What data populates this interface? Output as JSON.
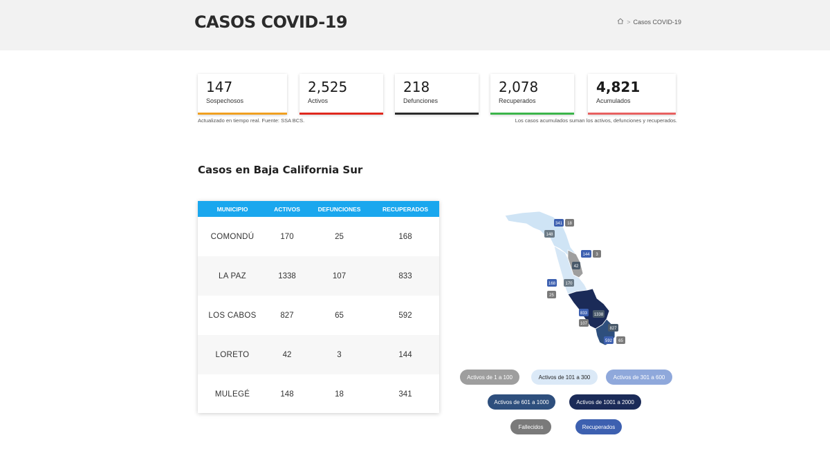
{
  "header": {
    "title": "CASOS COVID-19",
    "breadcrumb": {
      "home_icon": "home-icon",
      "separator": ">",
      "current": "Casos COVID-19"
    }
  },
  "stats": [
    {
      "value": "147",
      "label": "Sospechosos",
      "color": "#f0a020"
    },
    {
      "value": "2,525",
      "label": "Activos",
      "color": "#e0281e"
    },
    {
      "value": "218",
      "label": "Defunciones",
      "color": "#2b2b2b"
    },
    {
      "value": "2,078",
      "label": "Recuperados",
      "color": "#3bb54a"
    },
    {
      "value": "4,821",
      "label": "Acumulados",
      "color": "#e86060"
    }
  ],
  "notes": {
    "left": "Actualizado en tiempo real. Fuente: SSA BCS.",
    "right": "Los casos acumulados suman los activos, defunciones y recuperados."
  },
  "section": {
    "title": "Casos en Baja California Sur"
  },
  "table": {
    "headers": [
      "MUNICIPIO",
      "ACTIVOS",
      "DEFUNCIONES",
      "RECUPERADOS"
    ],
    "rows": [
      [
        "COMONDÚ",
        "170",
        "25",
        "168"
      ],
      [
        "LA PAZ",
        "1338",
        "107",
        "833"
      ],
      [
        "LOS CABOS",
        "827",
        "65",
        "592"
      ],
      [
        "LORETO",
        "42",
        "3",
        "144"
      ],
      [
        "MULEGÉ",
        "148",
        "18",
        "341"
      ]
    ],
    "header_color": "#1aa7ee"
  },
  "map": {
    "labels": {
      "mulege_recovered": "341",
      "mulege_deaths": "18",
      "mulege_active": "148",
      "loreto_recovered": "144",
      "loreto_deaths": "3",
      "loreto_active": "42",
      "comondu_recovered": "168",
      "comondu_active": "170",
      "comondu_deaths": "25",
      "lapaz_recovered": "833",
      "lapaz_active": "1338",
      "lapaz_deaths": "107",
      "loscabos_active": "827",
      "loscabos_recovered": "592",
      "loscabos_deaths": "65"
    }
  },
  "legend": {
    "items": [
      {
        "label": "Activos de 1 a 100",
        "bg": "#9e9e9e",
        "fg": "#ffffff"
      },
      {
        "label": "Activos de 101 a 300",
        "bg": "#dbe9f7",
        "fg": "#222222"
      },
      {
        "label": "Activos de 301 a 600",
        "bg": "#8fa8db",
        "fg": "#ffffff"
      },
      {
        "label": "Activos de 601 a 1000",
        "bg": "#2e4f7d",
        "fg": "#ffffff"
      },
      {
        "label": "Activos de 1001 a 2000",
        "bg": "#1b2b58",
        "fg": "#ffffff"
      },
      {
        "label": "Fallecidos",
        "bg": "#7a7a7a",
        "fg": "#ffffff"
      },
      {
        "label": "Recuperados",
        "bg": "#3d60b0",
        "fg": "#ffffff"
      }
    ]
  }
}
